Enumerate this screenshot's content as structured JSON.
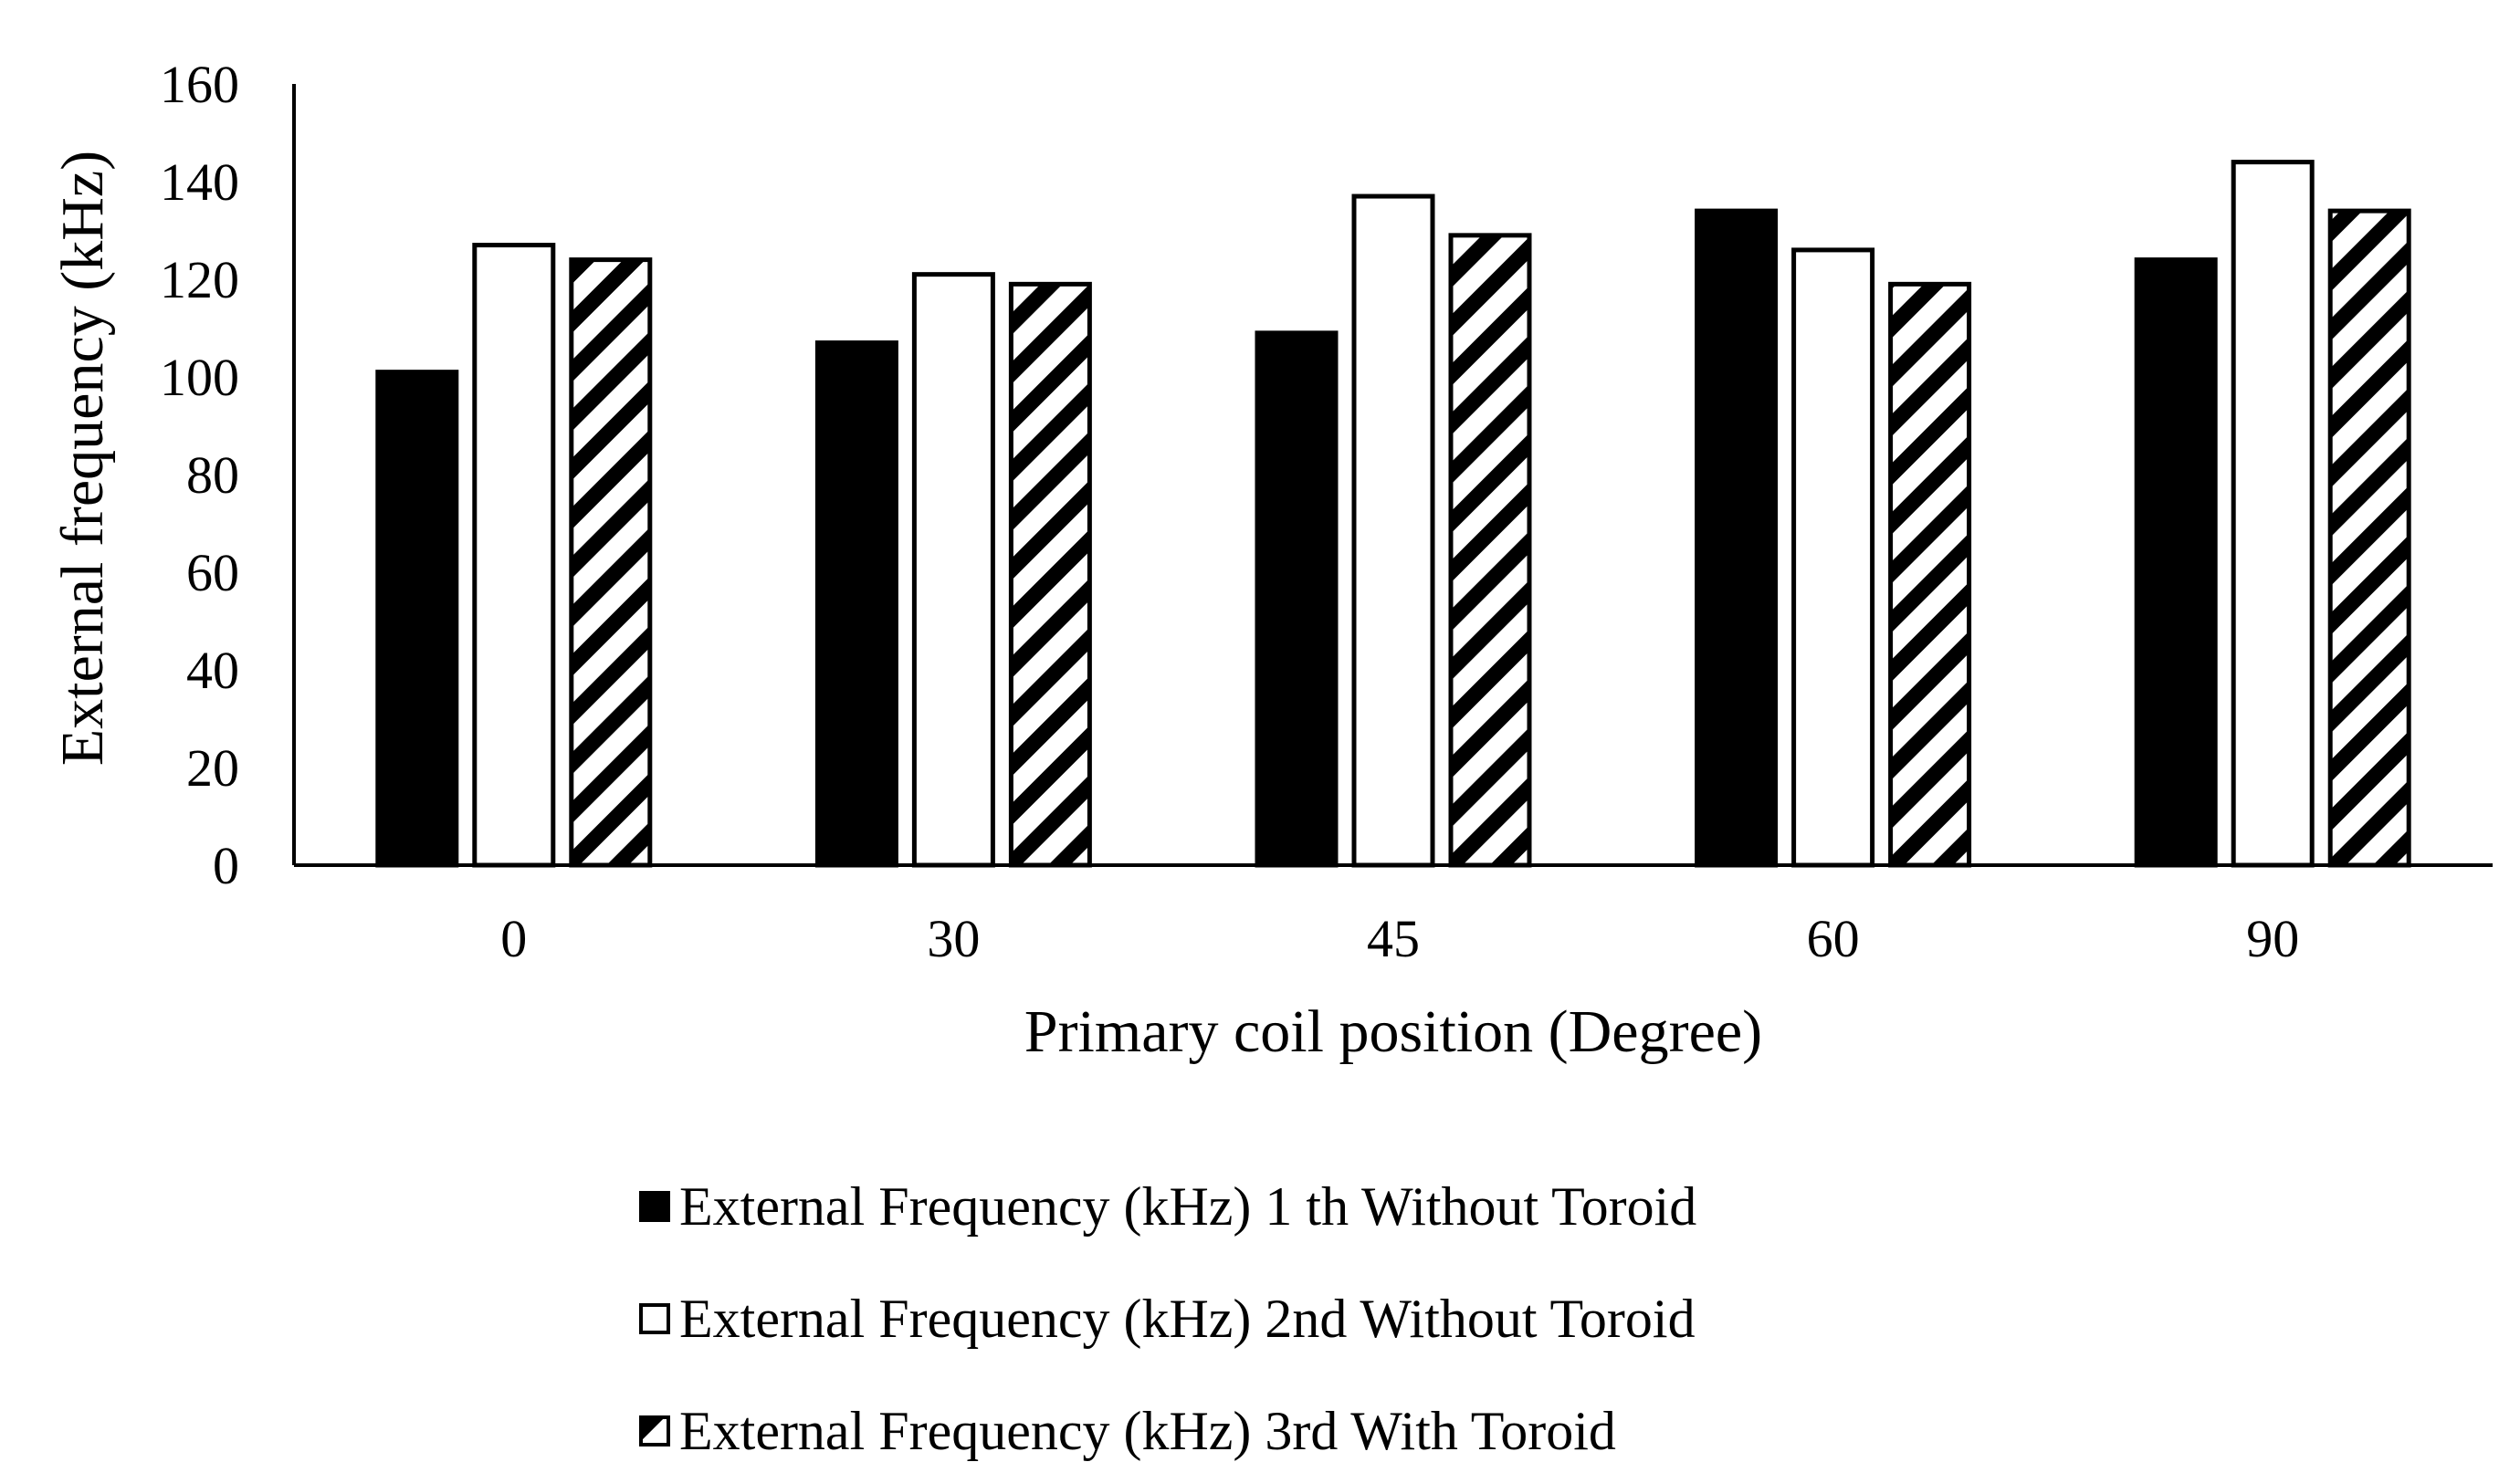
{
  "chart_data": {
    "type": "bar",
    "xlabel": "Primary coil position (Degree)",
    "ylabel": "External frequency (kHz)",
    "ylim": [
      0,
      160
    ],
    "yticks": [
      0,
      20,
      40,
      60,
      80,
      100,
      120,
      140,
      160
    ],
    "categories": [
      "0",
      "30",
      "45",
      "60",
      "90"
    ],
    "series": [
      {
        "name": "External Frequency (kHz) 1 th Without Toroid",
        "values": [
          101,
          107,
          109,
          134,
          124
        ],
        "fill": "solid",
        "color": "#000000"
      },
      {
        "name": "External Frequency (kHz) 2nd Without Toroid",
        "values": [
          127,
          121,
          137,
          126,
          144
        ],
        "fill": "hollow",
        "color": "#ffffff"
      },
      {
        "name": "External Frequency (kHz) 3rd With Toroid",
        "values": [
          124,
          119,
          129,
          119,
          134
        ],
        "fill": "diagonal-hatch",
        "color": "#000000"
      }
    ],
    "grid": false,
    "legend_position": "bottom"
  }
}
